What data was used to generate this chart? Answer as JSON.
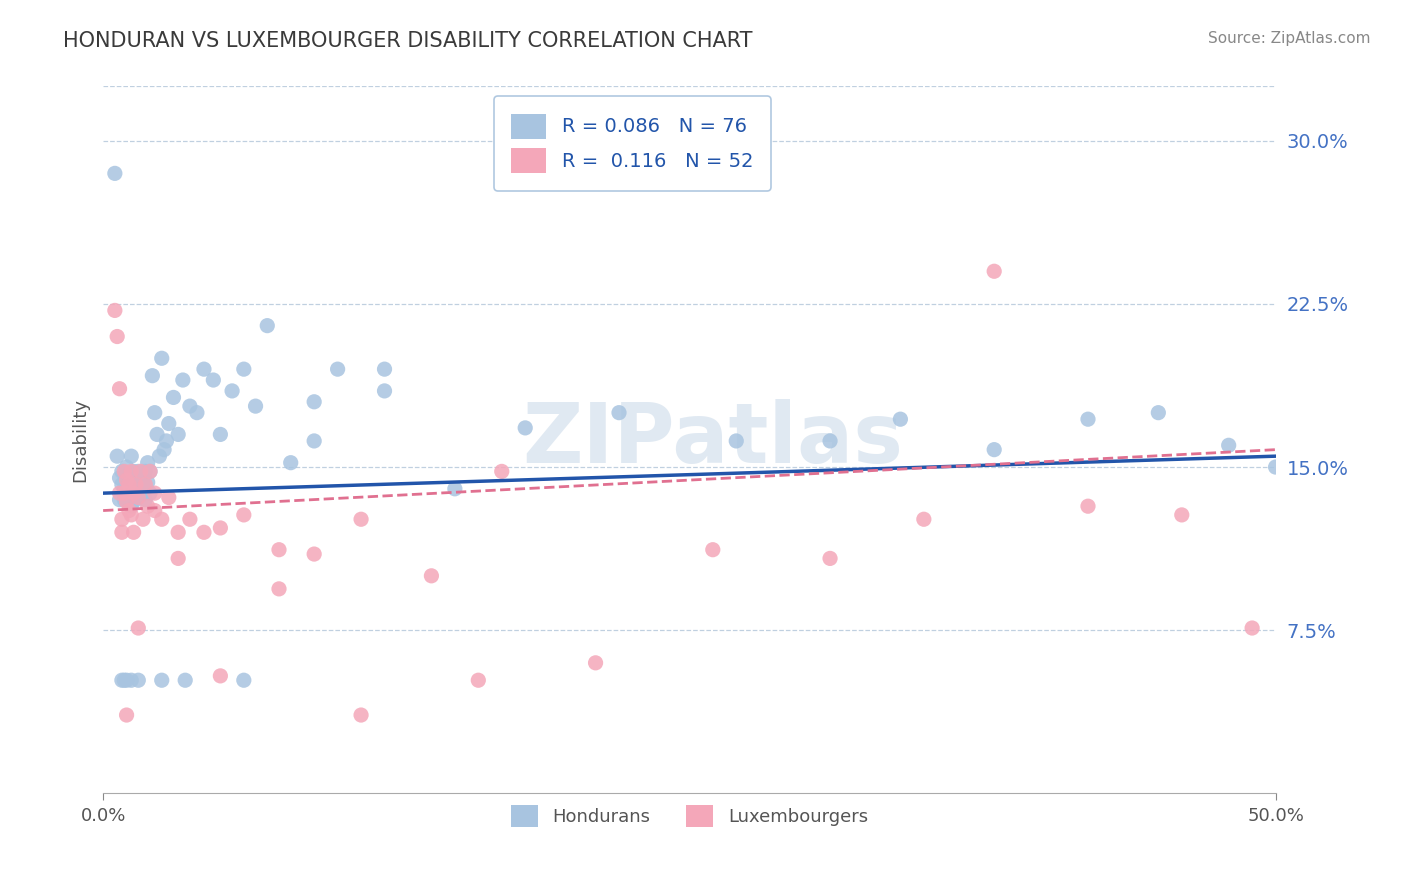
{
  "title": "HONDURAN VS LUXEMBOURGER DISABILITY CORRELATION CHART",
  "source": "Source: ZipAtlas.com",
  "xlabel": "",
  "ylabel": "Disability",
  "xlim": [
    0.0,
    0.5
  ],
  "ylim": [
    0.0,
    0.325
  ],
  "yticks": [
    0.075,
    0.15,
    0.225,
    0.3
  ],
  "ytick_labels": [
    "7.5%",
    "15.0%",
    "22.5%",
    "30.0%"
  ],
  "xticks": [
    0.0,
    0.5
  ],
  "xtick_labels": [
    "0.0%",
    "50.0%"
  ],
  "honduran_color": "#a8c4e0",
  "luxembourger_color": "#f4a7b9",
  "honduran_line_color": "#2255aa",
  "luxembourger_line_color": "#e07090",
  "R_honduran": 0.086,
  "N_honduran": 76,
  "R_luxembourger": 0.116,
  "N_luxembourger": 52,
  "watermark": "ZIPatlas",
  "background_color": "#ffffff",
  "grid_color": "#c0d0e0",
  "hon_trend_x": [
    0.0,
    0.5
  ],
  "hon_trend_y": [
    0.138,
    0.155
  ],
  "lux_trend_x": [
    0.0,
    0.5
  ],
  "lux_trend_y": [
    0.13,
    0.158
  ],
  "honduran_x": [
    0.005,
    0.006,
    0.007,
    0.007,
    0.008,
    0.008,
    0.009,
    0.009,
    0.01,
    0.01,
    0.011,
    0.011,
    0.012,
    0.012,
    0.012,
    0.013,
    0.013,
    0.014,
    0.014,
    0.015,
    0.015,
    0.016,
    0.016,
    0.017,
    0.017,
    0.018,
    0.018,
    0.019,
    0.019,
    0.02,
    0.02,
    0.021,
    0.022,
    0.023,
    0.024,
    0.025,
    0.026,
    0.027,
    0.028,
    0.03,
    0.032,
    0.034,
    0.037,
    0.04,
    0.043,
    0.047,
    0.05,
    0.055,
    0.06,
    0.065,
    0.07,
    0.08,
    0.09,
    0.1,
    0.12,
    0.15,
    0.18,
    0.22,
    0.27,
    0.31,
    0.34,
    0.38,
    0.42,
    0.45,
    0.48,
    0.5,
    0.12,
    0.09,
    0.06,
    0.035,
    0.025,
    0.015,
    0.012,
    0.01,
    0.009,
    0.008
  ],
  "honduran_y": [
    0.285,
    0.155,
    0.145,
    0.135,
    0.142,
    0.148,
    0.14,
    0.135,
    0.15,
    0.142,
    0.138,
    0.145,
    0.14,
    0.132,
    0.155,
    0.138,
    0.148,
    0.143,
    0.135,
    0.148,
    0.14,
    0.145,
    0.137,
    0.143,
    0.138,
    0.148,
    0.135,
    0.152,
    0.143,
    0.148,
    0.138,
    0.192,
    0.175,
    0.165,
    0.155,
    0.2,
    0.158,
    0.162,
    0.17,
    0.182,
    0.165,
    0.19,
    0.178,
    0.175,
    0.195,
    0.19,
    0.165,
    0.185,
    0.195,
    0.178,
    0.215,
    0.152,
    0.18,
    0.195,
    0.195,
    0.14,
    0.168,
    0.175,
    0.162,
    0.162,
    0.172,
    0.158,
    0.172,
    0.175,
    0.16,
    0.15,
    0.185,
    0.162,
    0.052,
    0.052,
    0.052,
    0.052,
    0.052,
    0.052,
    0.052,
    0.052
  ],
  "luxembourger_x": [
    0.005,
    0.006,
    0.007,
    0.007,
    0.008,
    0.008,
    0.009,
    0.009,
    0.01,
    0.01,
    0.011,
    0.011,
    0.012,
    0.012,
    0.013,
    0.013,
    0.014,
    0.015,
    0.016,
    0.017,
    0.018,
    0.019,
    0.02,
    0.022,
    0.025,
    0.028,
    0.032,
    0.037,
    0.043,
    0.05,
    0.06,
    0.075,
    0.09,
    0.11,
    0.14,
    0.17,
    0.21,
    0.26,
    0.31,
    0.35,
    0.38,
    0.42,
    0.46,
    0.49,
    0.16,
    0.11,
    0.075,
    0.05,
    0.032,
    0.022,
    0.015,
    0.01
  ],
  "luxembourger_y": [
    0.222,
    0.21,
    0.186,
    0.138,
    0.126,
    0.12,
    0.148,
    0.138,
    0.144,
    0.134,
    0.142,
    0.13,
    0.148,
    0.128,
    0.138,
    0.12,
    0.142,
    0.136,
    0.148,
    0.126,
    0.142,
    0.132,
    0.148,
    0.138,
    0.126,
    0.136,
    0.12,
    0.126,
    0.12,
    0.122,
    0.128,
    0.094,
    0.11,
    0.126,
    0.1,
    0.148,
    0.06,
    0.112,
    0.108,
    0.126,
    0.24,
    0.132,
    0.128,
    0.076,
    0.052,
    0.036,
    0.112,
    0.054,
    0.108,
    0.13,
    0.076,
    0.036
  ]
}
